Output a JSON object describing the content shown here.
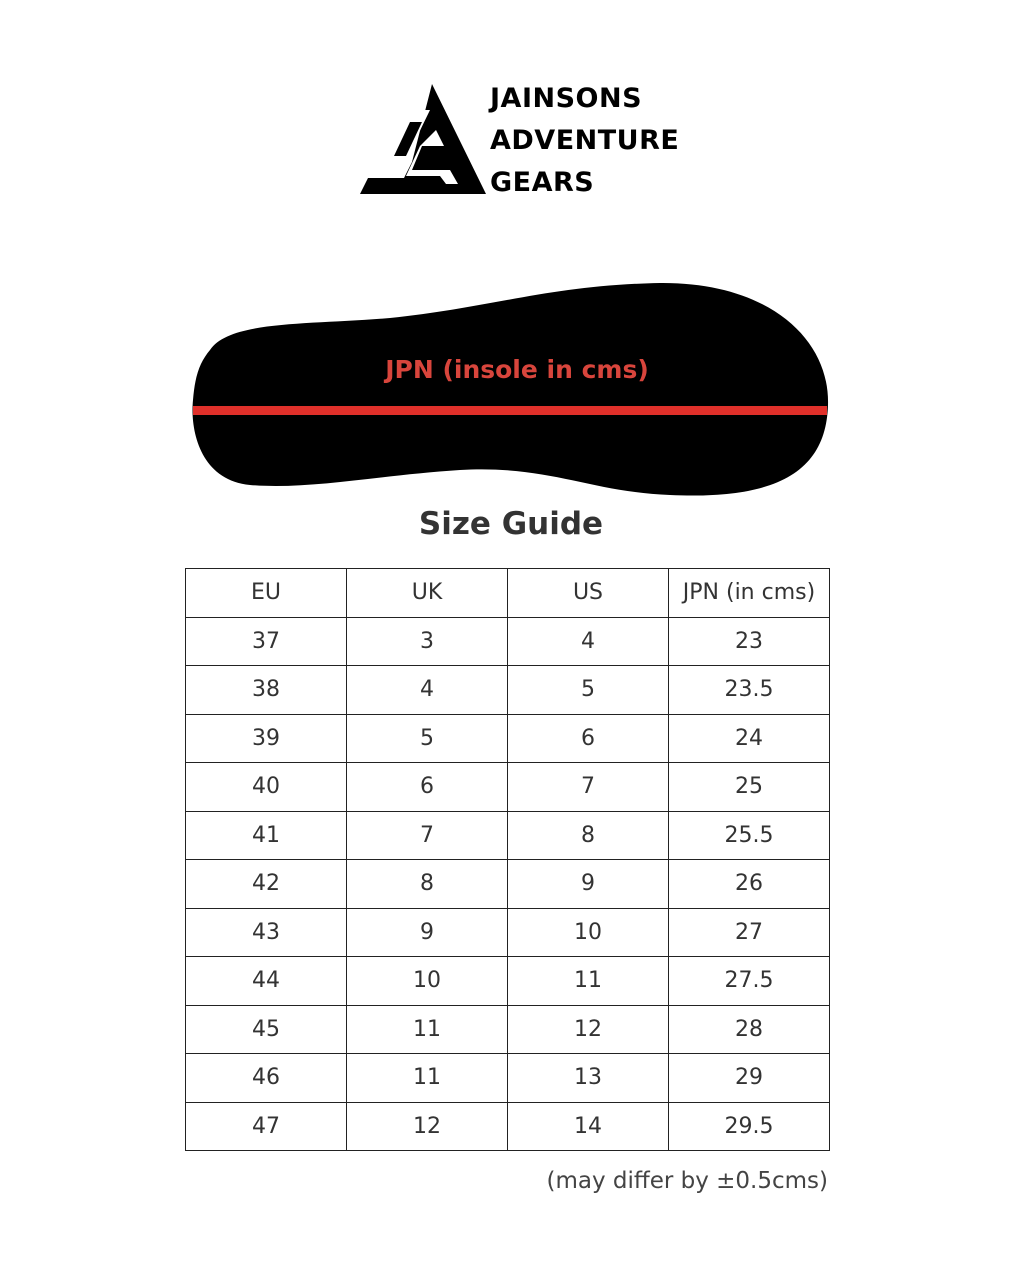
{
  "brand": {
    "lines": [
      "JAINSONS",
      "ADVENTURE",
      "GEARS"
    ],
    "logo_letters": "JAG"
  },
  "insole": {
    "label": "JPN (insole in cms)",
    "label_color": "#d8453c",
    "line_color": "#e0302a"
  },
  "title": "Size Guide",
  "table": {
    "headers": [
      "EU",
      "UK",
      "US",
      "JPN (in cms)"
    ],
    "rows": [
      [
        "37",
        "3",
        "4",
        "23"
      ],
      [
        "38",
        "4",
        "5",
        "23.5"
      ],
      [
        "39",
        "5",
        "6",
        "24"
      ],
      [
        "40",
        "6",
        "7",
        "25"
      ],
      [
        "41",
        "7",
        "8",
        "25.5"
      ],
      [
        "42",
        "8",
        "9",
        "26"
      ],
      [
        "43",
        "9",
        "10",
        "27"
      ],
      [
        "44",
        "10",
        "11",
        "27.5"
      ],
      [
        "45",
        "11",
        "12",
        "28"
      ],
      [
        "46",
        "11",
        "13",
        "29"
      ],
      [
        "47",
        "12",
        "14",
        "29.5"
      ]
    ]
  },
  "note": "(may differ by ±0.5cms)"
}
